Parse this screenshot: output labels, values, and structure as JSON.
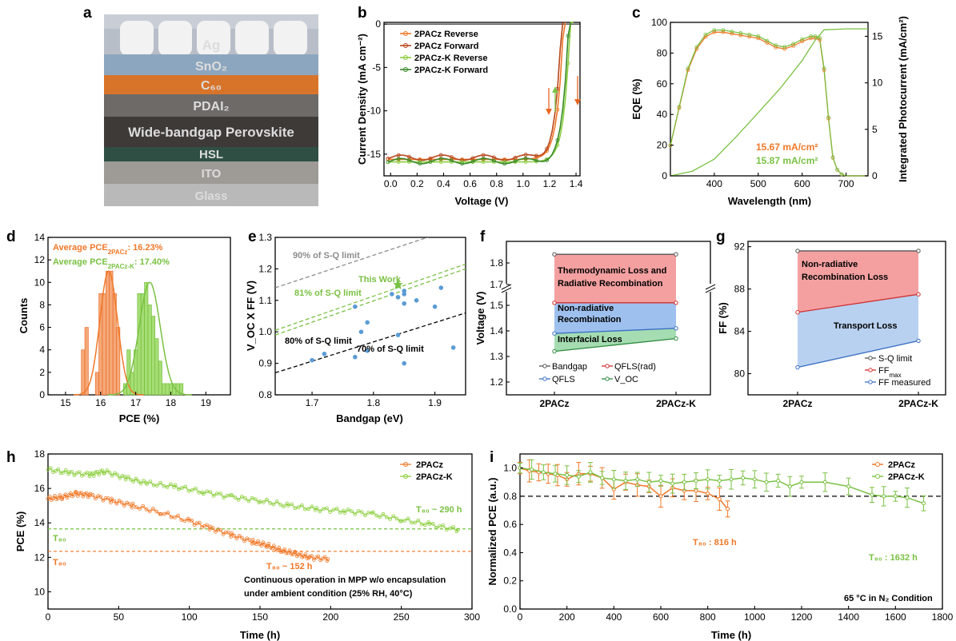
{
  "panels": {
    "a": {
      "letter": "a",
      "layers": [
        "Ag",
        "SnO₂",
        "C₆₀",
        "PDAI₂",
        "Wide-bandgap Perovskite",
        "HSL",
        "ITO",
        "Glass"
      ]
    },
    "b": {
      "letter": "b",
      "legend_arrow_colors": [
        "#e8641e",
        "#7ac143"
      ]
    },
    "c": {
      "letter": "c"
    },
    "d": {
      "letter": "d"
    },
    "e": {
      "letter": "e"
    },
    "f": {
      "letter": "f"
    },
    "g": {
      "letter": "g"
    },
    "h": {
      "letter": "h"
    },
    "i": {
      "letter": "i"
    }
  },
  "colors": {
    "orange": "#f07828",
    "dark_orange": "#b8461c",
    "green": "#7ac143",
    "dark_green": "#3a8a2a",
    "gray": "#8c8c8c",
    "blue": "#3a6fc4",
    "black": "#000000"
  },
  "chart_data": [
    {
      "id": "b",
      "type": "line",
      "xlabel": "Voltage (V)",
      "ylabel": "Current Density (mA cm⁻²)",
      "xlim": [
        -0.05,
        1.43
      ],
      "ylim": [
        -17.5,
        0.2
      ],
      "xticks": [
        "0.0",
        "0.2",
        "0.4",
        "0.6",
        "0.8",
        "1.0",
        "1.2",
        "1.4"
      ],
      "yticks": [
        "0",
        "-5",
        "-10",
        "-15"
      ],
      "series": [
        {
          "name": "2PACz Reverse",
          "color": "#f07828",
          "jsc": -15.6,
          "voc": 1.305
        },
        {
          "name": "2PACz Forward",
          "color": "#b8461c",
          "jsc": -15.4,
          "voc": 1.29
        },
        {
          "name": "2PACz-K Reverse",
          "color": "#8ccf3e",
          "jsc": -15.9,
          "voc": 1.355
        },
        {
          "name": "2PACz-K Forward",
          "color": "#3a8a2a",
          "jsc": -15.8,
          "voc": 1.345
        }
      ]
    },
    {
      "id": "c",
      "type": "line",
      "xlabel": "Wavelength (nm)",
      "ylabel": "EQE (%)",
      "ylabel_right": "Integrated Photocurrent (mA/cm²)",
      "xlim": [
        300,
        750
      ],
      "ylim": [
        0,
        100
      ],
      "ylim_right": [
        0,
        16.5
      ],
      "xticks": [
        "400",
        "500",
        "600",
        "700"
      ],
      "yticks": [
        "0",
        "20",
        "40",
        "60",
        "80",
        "100"
      ],
      "yticks_right": [
        "0",
        "5",
        "10",
        "15"
      ],
      "eqe_points": [
        [
          300,
          20
        ],
        [
          320,
          45
        ],
        [
          340,
          70
        ],
        [
          360,
          84
        ],
        [
          380,
          92
        ],
        [
          400,
          95
        ],
        [
          420,
          95
        ],
        [
          440,
          94
        ],
        [
          460,
          93
        ],
        [
          480,
          92
        ],
        [
          500,
          91
        ],
        [
          520,
          88
        ],
        [
          540,
          85
        ],
        [
          560,
          84
        ],
        [
          580,
          86
        ],
        [
          600,
          89
        ],
        [
          620,
          91
        ],
        [
          630,
          91
        ],
        [
          640,
          90
        ],
        [
          650,
          70
        ],
        [
          660,
          38
        ],
        [
          670,
          12
        ],
        [
          680,
          4
        ],
        [
          690,
          1
        ],
        [
          700,
          0
        ],
        [
          750,
          0
        ]
      ],
      "integrated_points": [
        [
          300,
          0
        ],
        [
          350,
          0.5
        ],
        [
          400,
          1.8
        ],
        [
          450,
          4.2
        ],
        [
          500,
          6.8
        ],
        [
          550,
          9.4
        ],
        [
          600,
          12.4
        ],
        [
          630,
          14.6
        ],
        [
          650,
          15.7
        ],
        [
          700,
          15.8
        ],
        [
          750,
          15.8
        ]
      ],
      "annotations": [
        "15.67 mA/cm²",
        "15.87 mA/cm²"
      ]
    },
    {
      "id": "d",
      "type": "bar",
      "xlabel": "PCE (%)",
      "ylabel": "Counts",
      "xlim": [
        14.5,
        19.7
      ],
      "ylim": [
        0,
        14
      ],
      "xticks": [
        "15",
        "16",
        "17",
        "18",
        "19"
      ],
      "yticks": [
        "0",
        "2",
        "4",
        "6",
        "8",
        "10",
        "12",
        "14"
      ],
      "histograms": [
        {
          "name": "2PACz",
          "color": "#f5a878",
          "bins": [
            [
              15.5,
              4
            ],
            [
              15.6,
              6
            ],
            [
              15.9,
              2
            ],
            [
              16.0,
              9
            ],
            [
              16.1,
              9
            ],
            [
              16.2,
              11
            ],
            [
              16.3,
              11
            ],
            [
              16.4,
              9
            ],
            [
              16.5,
              6
            ]
          ]
        },
        {
          "name": "2PACz-K",
          "color": "#a6de76",
          "bins": [
            [
              16.7,
              1
            ],
            [
              16.8,
              4
            ],
            [
              16.9,
              2
            ],
            [
              17.0,
              4
            ],
            [
              17.1,
              9
            ],
            [
              17.2,
              9
            ],
            [
              17.3,
              10
            ],
            [
              17.4,
              8
            ],
            [
              17.5,
              7
            ],
            [
              17.6,
              5
            ],
            [
              17.7,
              3
            ],
            [
              17.8,
              1
            ],
            [
              17.9,
              1
            ],
            [
              18.0,
              1
            ],
            [
              18.1,
              1
            ],
            [
              18.2,
              1
            ],
            [
              18.3,
              1
            ]
          ]
        }
      ],
      "fits": [
        {
          "mean": 16.23,
          "sd": 0.25,
          "peak": 11
        },
        {
          "mean": 17.4,
          "sd": 0.3,
          "peak": 10
        }
      ],
      "annotations": [
        {
          "text": "Average PCE",
          "sub": "2PACz",
          "value": ": 16.23%"
        },
        {
          "text": "Average PCE",
          "sub": "2PACz-K",
          "value": ": 17.40%"
        }
      ]
    },
    {
      "id": "e",
      "type": "scatter",
      "xlabel": "Bandgap (eV)",
      "ylabel": "V_OC X FF (V)",
      "xlim": [
        1.64,
        1.95
      ],
      "ylim": [
        0.8,
        1.3
      ],
      "xticks": [
        "1.7",
        "1.8",
        "1.9"
      ],
      "yticks": [
        "0.8",
        "0.9",
        "1.0",
        "1.1",
        "1.2",
        "1.3"
      ],
      "points": [
        [
          1.7,
          0.91
        ],
        [
          1.72,
          0.93
        ],
        [
          1.77,
          0.92
        ],
        [
          1.79,
          0.94
        ],
        [
          1.78,
          1.0
        ],
        [
          1.79,
          1.03
        ],
        [
          1.77,
          1.08
        ],
        [
          1.83,
          1.12
        ],
        [
          1.84,
          1.11
        ],
        [
          1.85,
          1.13
        ],
        [
          1.85,
          1.12
        ],
        [
          1.85,
          1.09
        ],
        [
          1.84,
          0.99
        ],
        [
          1.85,
          0.9
        ],
        [
          1.87,
          1.1
        ],
        [
          1.9,
          1.08
        ],
        [
          1.91,
          1.14
        ],
        [
          1.93,
          0.95
        ]
      ],
      "this_work": [
        1.84,
        1.15
      ],
      "limit_lines": [
        {
          "label": "90% of S-Q limit",
          "color": "#8c8c8c",
          "from": [
            1.64,
            1.14
          ],
          "to": [
            1.95,
            1.34
          ]
        },
        {
          "label": "81% of S-Q limit",
          "color": "#7ac143",
          "from": [
            1.64,
            1.005
          ],
          "to": [
            1.95,
            1.215
          ]
        },
        {
          "label": "80% of S-Q limit",
          "color": "#7ac143",
          "from": [
            1.64,
            0.99
          ],
          "to": [
            1.95,
            1.2
          ]
        },
        {
          "label": "70% of S-Q limit",
          "color": "#000000",
          "from": [
            1.64,
            0.87
          ],
          "to": [
            1.95,
            1.06
          ]
        }
      ],
      "annotations": [
        "This Work",
        "90% of S-Q limit",
        "81% of S-Q limit",
        "80% of S-Q limit",
        "70% of S-Q limit"
      ]
    },
    {
      "id": "f",
      "type": "line",
      "xlabel": "",
      "ylabel": "Voltage (V)",
      "categories": [
        "2PACz",
        "2PACz-K"
      ],
      "ylim_lower": [
        1.15,
        1.55
      ],
      "ylim_upper": [
        1.7,
        1.9
      ],
      "yticks": [
        "1.2",
        "1.3",
        "1.4",
        "1.5",
        "1.7",
        "1.8"
      ],
      "series": [
        {
          "name": "Bandgap",
          "color": "#555555",
          "values": [
            1.84,
            1.84
          ]
        },
        {
          "name": "QFLS(rad)",
          "color": "#d03030",
          "values": [
            1.51,
            1.51
          ]
        },
        {
          "name": "QFLS",
          "color": "#3a6fc4",
          "values": [
            1.39,
            1.41
          ]
        },
        {
          "name": "V_OC",
          "color": "#2e8b3e",
          "values": [
            1.32,
            1.37
          ]
        }
      ],
      "regions": [
        "Thermodynamic Loss and",
        "Radiative Recombination",
        "Non-radiative",
        "Recombination",
        "Interfacial Loss"
      ]
    },
    {
      "id": "g",
      "type": "line",
      "xlabel": "",
      "ylabel": "FF (%)",
      "categories": [
        "2PACz",
        "2PACz-K"
      ],
      "ylim": [
        78,
        92.5
      ],
      "yticks": [
        "80",
        "84",
        "88",
        "92"
      ],
      "series": [
        {
          "name": "S-Q limit",
          "color": "#555555",
          "values": [
            91.6,
            91.6
          ]
        },
        {
          "name": "FF",
          "sub": "max",
          "color": "#d03030",
          "values": [
            85.8,
            87.5
          ]
        },
        {
          "name": "FF measured",
          "color": "#3a6fc4",
          "values": [
            80.6,
            83.1
          ]
        }
      ],
      "regions": [
        "Non-radiative",
        "Recombination Loss",
        "Transport Loss"
      ]
    },
    {
      "id": "h",
      "type": "scatter",
      "xlabel": "Time (h)",
      "ylabel": "PCE (%)",
      "xlim": [
        0,
        300
      ],
      "ylim": [
        9,
        18
      ],
      "xticks": [
        "0",
        "50",
        "100",
        "150",
        "200",
        "250",
        "300"
      ],
      "yticks": [
        "10",
        "12",
        "14",
        "16",
        "18"
      ],
      "series": [
        {
          "name": "2PACz",
          "color": "#f07828",
          "points": [
            [
              0,
              15.4
            ],
            [
              10,
              15.5
            ],
            [
              20,
              15.7
            ],
            [
              30,
              15.6
            ],
            [
              45,
              15.3
            ],
            [
              60,
              15.0
            ],
            [
              80,
              14.6
            ],
            [
              100,
              14.1
            ],
            [
              115,
              13.7
            ],
            [
              130,
              13.3
            ],
            [
              145,
              12.9
            ],
            [
              155,
              12.7
            ],
            [
              165,
              12.4
            ],
            [
              175,
              12.2
            ],
            [
              185,
              12.0
            ],
            [
              198,
              11.9
            ]
          ]
        },
        {
          "name": "2PACz-K",
          "color": "#8ccf3e",
          "points": [
            [
              0,
              17.1
            ],
            [
              15,
              16.9
            ],
            [
              30,
              16.8
            ],
            [
              40,
              17.0
            ],
            [
              55,
              16.6
            ],
            [
              70,
              16.3
            ],
            [
              90,
              16.1
            ],
            [
              110,
              15.8
            ],
            [
              130,
              15.5
            ],
            [
              150,
              15.3
            ],
            [
              170,
              15.0
            ],
            [
              190,
              14.8
            ],
            [
              210,
              14.7
            ],
            [
              230,
              14.5
            ],
            [
              250,
              14.2
            ],
            [
              270,
              13.9
            ],
            [
              290,
              13.6
            ]
          ]
        }
      ],
      "reference_lines": [
        {
          "label": "T₈₀",
          "value": 13.65,
          "color": "#7ac143"
        },
        {
          "label": "T₈₀",
          "value": 12.35,
          "color": "#f07828"
        }
      ],
      "annotations": [
        "T₈₀ ~ 290 h",
        "T₈₀ ~ 152 h",
        "Continuous operation in MPP w/o encapsulation",
        "under ambient condition (25% RH, 40°C)"
      ]
    },
    {
      "id": "i",
      "type": "line",
      "xlabel": "Time (h)",
      "ylabel": "Normalized PCE (a.u.)",
      "xlim": [
        0,
        1800
      ],
      "ylim": [
        0,
        1.1
      ],
      "xticks": [
        "0",
        "200",
        "400",
        "600",
        "800",
        "1000",
        "1200",
        "1400",
        "1600",
        "1800"
      ],
      "yticks": [
        "0.0",
        "0.2",
        "0.4",
        "0.6",
        "0.8",
        "1.0"
      ],
      "series": [
        {
          "name": "2PACz",
          "color": "#f07828",
          "points": [
            [
              0,
              1.0
            ],
            [
              40,
              0.98
            ],
            [
              80,
              0.97
            ],
            [
              120,
              0.96
            ],
            [
              160,
              0.95
            ],
            [
              200,
              0.92
            ],
            [
              250,
              0.96
            ],
            [
              300,
              0.96
            ],
            [
              350,
              0.93
            ],
            [
              400,
              0.85
            ],
            [
              450,
              0.9
            ],
            [
              500,
              0.88
            ],
            [
              550,
              0.87
            ],
            [
              600,
              0.8
            ],
            [
              650,
              0.86
            ],
            [
              700,
              0.84
            ],
            [
              750,
              0.84
            ],
            [
              800,
              0.82
            ],
            [
              850,
              0.78
            ],
            [
              885,
              0.71
            ]
          ],
          "err": 0.08
        },
        {
          "name": "2PACz-K",
          "color": "#7ac143",
          "points": [
            [
              0,
              1.0
            ],
            [
              50,
              0.99
            ],
            [
              100,
              0.97
            ],
            [
              150,
              0.96
            ],
            [
              200,
              0.95
            ],
            [
              250,
              0.94
            ],
            [
              300,
              0.97
            ],
            [
              350,
              0.93
            ],
            [
              400,
              0.92
            ],
            [
              450,
              0.91
            ],
            [
              500,
              0.92
            ],
            [
              550,
              0.9
            ],
            [
              600,
              0.91
            ],
            [
              650,
              0.89
            ],
            [
              700,
              0.9
            ],
            [
              750,
              0.91
            ],
            [
              800,
              0.92
            ],
            [
              850,
              0.91
            ],
            [
              900,
              0.92
            ],
            [
              950,
              0.93
            ],
            [
              1000,
              0.92
            ],
            [
              1050,
              0.9
            ],
            [
              1100,
              0.91
            ],
            [
              1150,
              0.87
            ],
            [
              1200,
              0.9
            ],
            [
              1300,
              0.9
            ],
            [
              1400,
              0.87
            ],
            [
              1500,
              0.81
            ],
            [
              1550,
              0.8
            ],
            [
              1600,
              0.8
            ],
            [
              1650,
              0.79
            ],
            [
              1720,
              0.75
            ]
          ],
          "err": 0.07
        }
      ],
      "reference_lines": [
        {
          "value": 0.8,
          "color": "#000000"
        }
      ],
      "annotations": [
        "T₈₀ : 816 h",
        "T₈₀ : 1632 h",
        "65 °C in N₂ Condition"
      ]
    }
  ]
}
